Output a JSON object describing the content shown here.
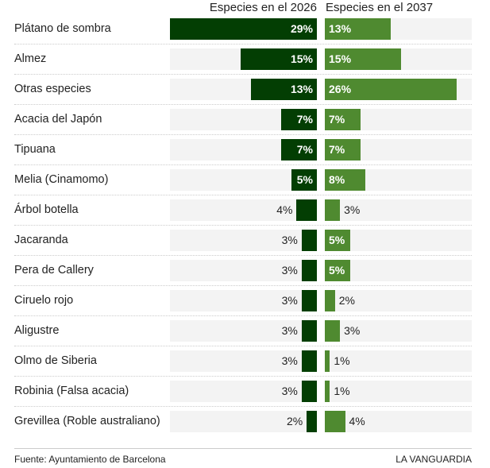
{
  "chart_data": {
    "type": "bar",
    "orientation": "horizontal-butterfly",
    "series": [
      {
        "name": "Especies en el 2026",
        "color": "#033e03",
        "values": [
          29,
          15,
          13,
          7,
          7,
          5,
          4,
          3,
          3,
          3,
          3,
          3,
          3,
          2
        ]
      },
      {
        "name": "Especies en el 2037",
        "color": "#4f8a30",
        "values": [
          13,
          15,
          26,
          7,
          7,
          8,
          3,
          5,
          5,
          2,
          3,
          1,
          1,
          4
        ]
      }
    ],
    "categories": [
      "Plátano de sombra",
      "Almez",
      "Otras especies",
      "Acacia del Japón",
      "Tipuana",
      "Melia (Cinamomo)",
      "Árbol botella",
      "Jacaranda",
      "Pera de Callery",
      "Ciruelo rojo",
      "Aligustre",
      "Olmo de Siberia",
      "Robinia (Falsa acacia)",
      "Grevillea (Roble australiano)"
    ],
    "unit": "%",
    "xlim": [
      0,
      29
    ]
  },
  "footer": {
    "source": "Fuente: Ayuntamiento de Barcelona",
    "brand": "LA VANGUARDIA"
  }
}
